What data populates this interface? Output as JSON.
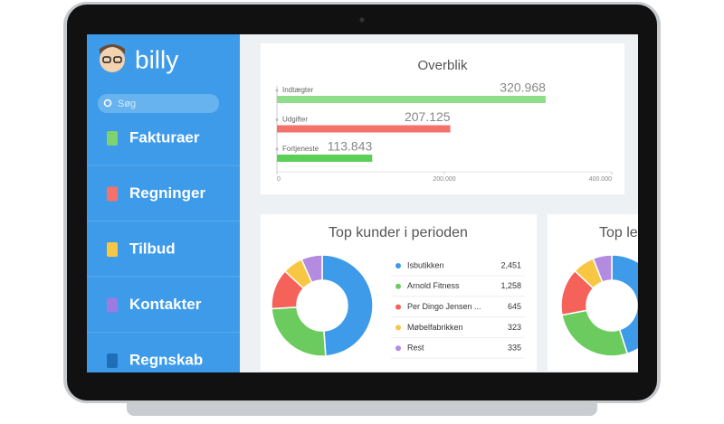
{
  "app": {
    "logo": "billy",
    "search_placeholder": "Søg"
  },
  "nav": [
    "Fakturaer",
    "Regninger",
    "Tilbud",
    "Kontakter",
    "Regnskab"
  ],
  "overview": {
    "type": "bar",
    "title": "Overblik",
    "categories": [
      "Indtægter",
      "Udgifter",
      "Fortjeneste"
    ],
    "values": [
      320968,
      207125,
      113843
    ],
    "value_labels": [
      "320.968",
      "207.125",
      "113.843"
    ],
    "colors": [
      "#8fdc8a",
      "#f4726b",
      "#5ccf58"
    ],
    "xlim": [
      0,
      400000
    ],
    "xticks": [
      0,
      {
        "value": 200000,
        "label": "200.000"
      },
      {
        "value": 400000,
        "label": "400.000"
      }
    ]
  },
  "top_customers": {
    "type": "pie",
    "title": "Top kunder i perioden",
    "categories": [
      "Isbutikken",
      "Arnold Fitness",
      "Per Dingo Jensen ...",
      "Møbelfabrikken",
      "Rest"
    ],
    "values": [
      2451,
      1258,
      645,
      323,
      335
    ],
    "value_labels": [
      "2,451",
      "1,258",
      "645",
      "323",
      "335"
    ],
    "colors": [
      "#3d9be9",
      "#6ccb5f",
      "#f4625a",
      "#f7c744",
      "#b38be0"
    ]
  },
  "second_card": {
    "type": "pie",
    "title": "Top le",
    "values": [
      45,
      27,
      15,
      7,
      6
    ],
    "colors": [
      "#3d9be9",
      "#6ccb5f",
      "#f4625a",
      "#f7c744",
      "#b38be0"
    ]
  }
}
